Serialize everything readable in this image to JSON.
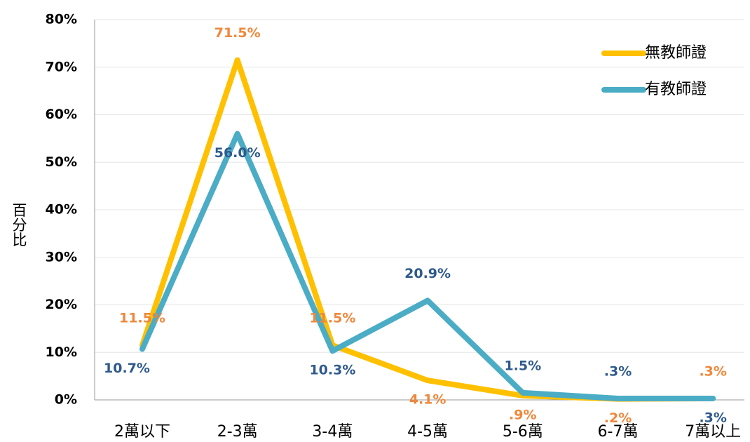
{
  "chart_data": {
    "type": "line",
    "y_label": "百分比",
    "categories": [
      "2萬以下",
      "2-3萬",
      "3-4萬",
      "4-5萬",
      "5-6萬",
      "6-7萬",
      "7萬以上"
    ],
    "series": [
      {
        "name": "無教師證",
        "color": "#ffc000",
        "label_color": "#f0873a",
        "values": [
          11.5,
          71.5,
          11.5,
          4.1,
          0.9,
          0.2,
          0.3
        ],
        "value_labels": [
          "11.5%",
          "71.5%",
          "11.5%",
          "4.1%",
          ".9%",
          ".2%",
          ".3%"
        ]
      },
      {
        "name": "有教師證",
        "color": "#4bacc6",
        "label_color": "#2e5a8c",
        "values": [
          10.7,
          56.0,
          10.3,
          20.9,
          1.5,
          0.3,
          0.3
        ],
        "value_labels": [
          "10.7%",
          "56.0%",
          "10.3%",
          "20.9%",
          "1.5%",
          ".3%",
          ".3%"
        ]
      }
    ],
    "ylim": [
      0,
      80
    ],
    "yticks": [
      {
        "value": 0,
        "label": "0%"
      },
      {
        "value": 10,
        "label": "10%"
      },
      {
        "value": 20,
        "label": "20%"
      },
      {
        "value": 30,
        "label": "30%"
      },
      {
        "value": 40,
        "label": "40%"
      },
      {
        "value": 50,
        "label": "50%"
      },
      {
        "value": 60,
        "label": "60%"
      },
      {
        "value": 70,
        "label": "70%"
      },
      {
        "value": 80,
        "label": "80%"
      }
    ],
    "grid": true,
    "legend": "upper right"
  }
}
